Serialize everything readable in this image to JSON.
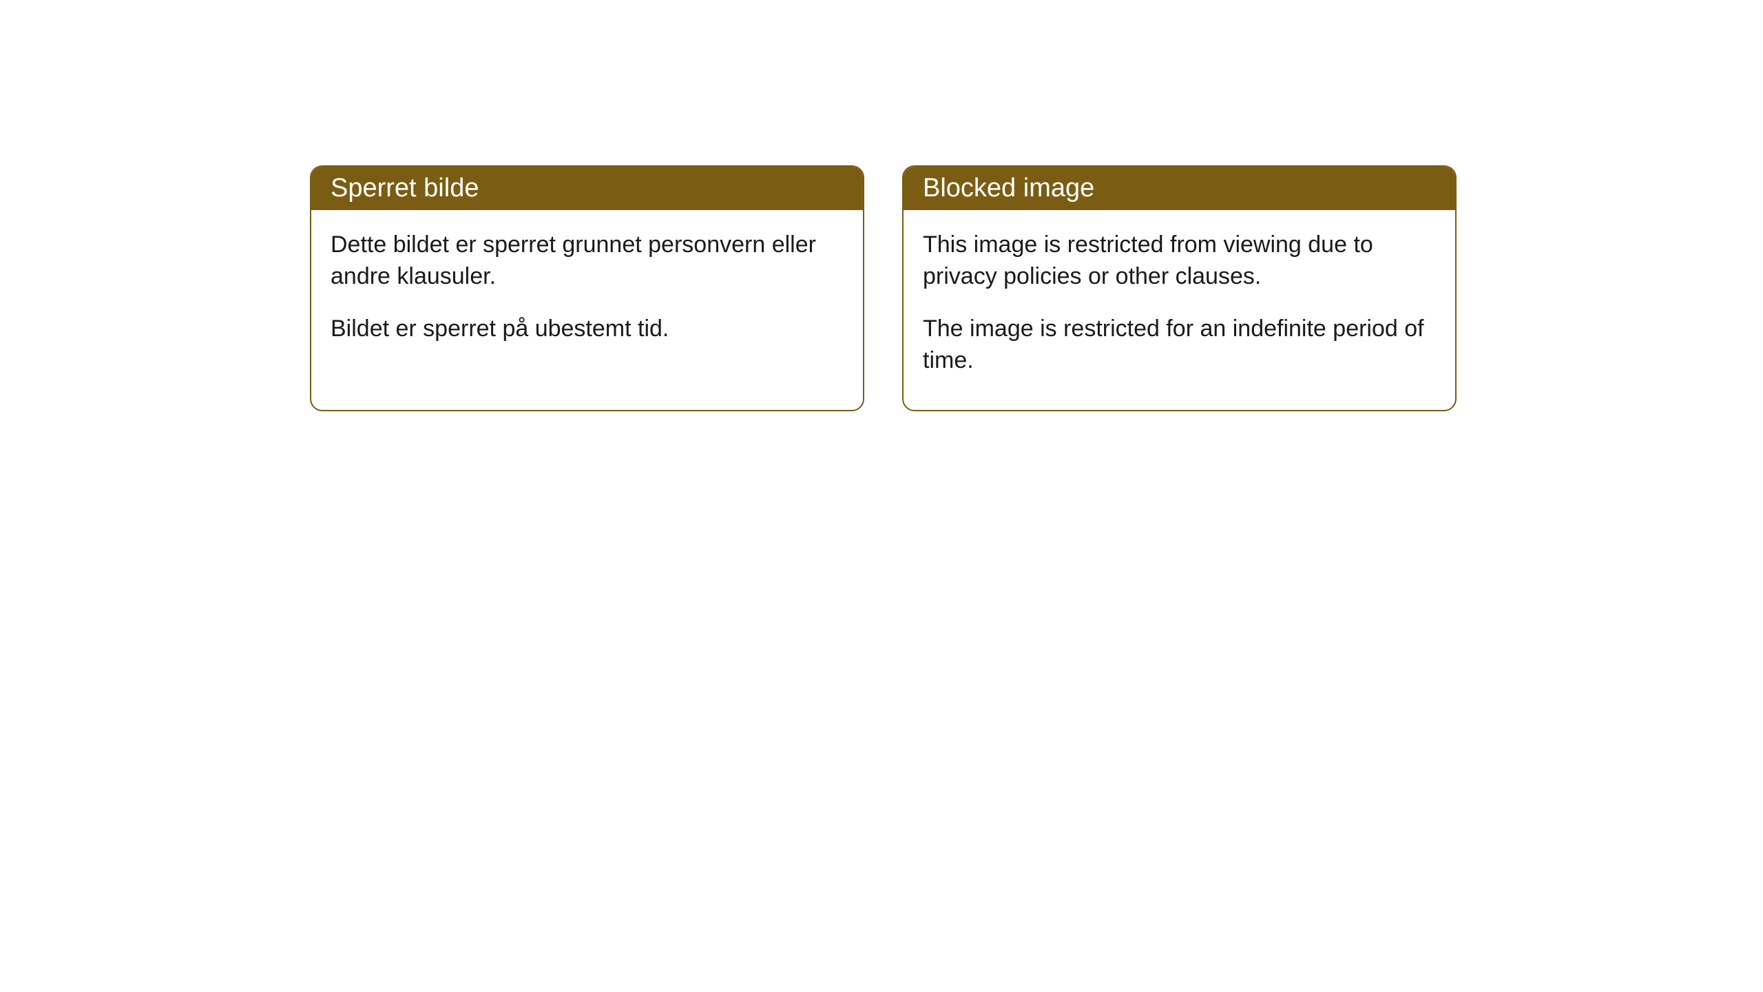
{
  "cards": [
    {
      "title": "Sperret bilde",
      "paragraph1": "Dette bildet er sperret grunnet personvern eller andre klausuler.",
      "paragraph2": "Bildet er sperret på ubestemt tid."
    },
    {
      "title": "Blocked image",
      "paragraph1": "This image is restricted from viewing due to privacy policies or other clauses.",
      "paragraph2": "The image is restricted for an indefinite period of time."
    }
  ],
  "styling": {
    "header_bg_color": "#7a5d13",
    "header_text_color": "#ffffff",
    "border_color": "#7a5d13",
    "body_bg_color": "#ffffff",
    "body_text_color": "#1a1a1a",
    "border_radius": 18,
    "title_fontsize": 38,
    "body_fontsize": 34
  }
}
